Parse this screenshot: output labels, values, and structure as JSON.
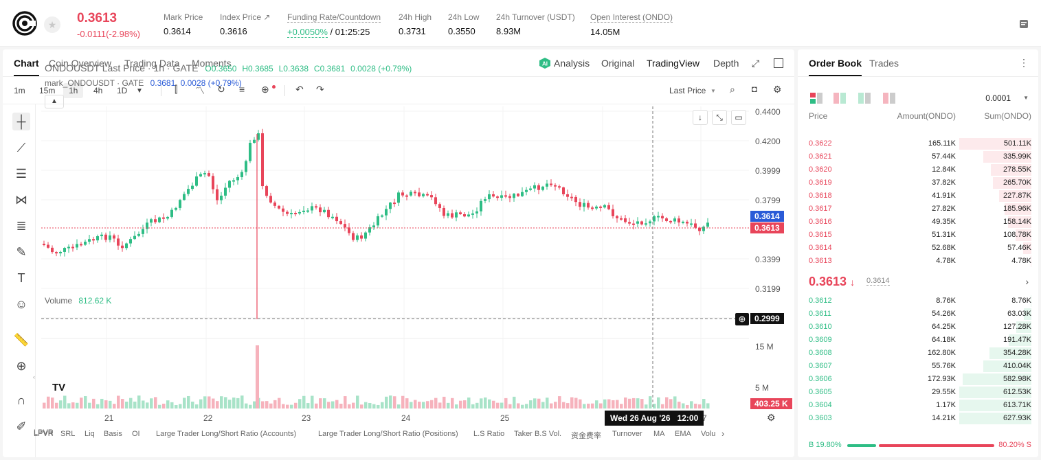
{
  "header": {
    "last_price": "0.3613",
    "change": "-0.0111(-2.98%)",
    "stats": [
      {
        "label": "Mark Price",
        "value": "0.3614"
      },
      {
        "label": "Index Price ↗",
        "value": "0.3616"
      },
      {
        "label": "Funding Rate/Countdown",
        "value": "+0.0050%",
        "value2": "/ 01:25:25"
      },
      {
        "label": "24h High",
        "value": "0.3731"
      },
      {
        "label": "24h Low",
        "value": "0.3550"
      },
      {
        "label": "24h Turnover (USDT)",
        "value": "8.93M"
      },
      {
        "label": "Open Interest (ONDO)",
        "value": "14.05M"
      }
    ]
  },
  "chart_tabs": [
    "Chart",
    "Coin Overview",
    "Trading Data",
    "Moments"
  ],
  "chart_view_tabs": [
    "Analysis",
    "Original",
    "TradingView",
    "Depth"
  ],
  "intervals": [
    "1m",
    "15m",
    "1h",
    "4h",
    "1D"
  ],
  "last_price_select": "Last Price",
  "legend": {
    "main": "ONDOUSDT Last Price · 1h · GATE",
    "o": "O0.3650",
    "h": "H0.3685",
    "l": "L0.3638",
    "c": "C0.3681",
    "chg": "0.0028 (+0.79%)",
    "mark_name": "mark_ONDOUSDT · GATE",
    "mark_val": "0.3681",
    "mark_chg": "0.0028 (+0.79%)"
  },
  "y_axis": [
    "0.4400",
    "0.4200",
    "0.3999",
    "0.3799",
    "0.3399",
    "0.3199"
  ],
  "price_tags": {
    "mark": "0.3614",
    "last": "0.3613",
    "cross": "0.2999",
    "volume": "403.25 K"
  },
  "volume": {
    "label": "Volume",
    "value": "812.62 K",
    "axis": [
      "15 M",
      "5 M"
    ]
  },
  "x_axis": [
    "21",
    "22",
    "23",
    "24",
    "25",
    "7"
  ],
  "crosshair_time": "Wed 26 Aug '26",
  "crosshair_hour": "12:00",
  "bottom_indicators": [
    "LPVR",
    "SRL",
    "Liq",
    "Basis",
    "OI",
    "Large Trader Long/Short Ratio (Accounts)",
    "Large Trader Long/Short Ratio (Positions)",
    "L.S Ratio",
    "Taker B.S Vol.",
    "资金费率",
    "Turnover",
    "MA",
    "EMA",
    "Volu"
  ],
  "orderbook": {
    "tabs": [
      "Order Book",
      "Trades"
    ],
    "precision": "0.0001",
    "headers": [
      "Price",
      "Amount(ONDO)",
      "Sum(ONDO)"
    ],
    "asks": [
      {
        "price": "0.3622",
        "amount": "165.11K",
        "sum": "501.11K",
        "depth": 1.0
      },
      {
        "price": "0.3621",
        "amount": "57.44K",
        "sum": "335.99K",
        "depth": 0.67
      },
      {
        "price": "0.3620",
        "amount": "12.84K",
        "sum": "278.55K",
        "depth": 0.56
      },
      {
        "price": "0.3619",
        "amount": "37.82K",
        "sum": "265.70K",
        "depth": 0.53
      },
      {
        "price": "0.3618",
        "amount": "41.91K",
        "sum": "227.87K",
        "depth": 0.45
      },
      {
        "price": "0.3617",
        "amount": "27.82K",
        "sum": "185.96K",
        "depth": 0.37
      },
      {
        "price": "0.3616",
        "amount": "49.35K",
        "sum": "158.14K",
        "depth": 0.32
      },
      {
        "price": "0.3615",
        "amount": "51.31K",
        "sum": "108.78K",
        "depth": 0.22
      },
      {
        "price": "0.3614",
        "amount": "52.68K",
        "sum": "57.46K",
        "depth": 0.11
      },
      {
        "price": "0.3613",
        "amount": "4.78K",
        "sum": "4.78K",
        "depth": 0.01
      }
    ],
    "mid_price": "0.3613",
    "mid_mark": "0.3614",
    "bids": [
      {
        "price": "0.3612",
        "amount": "8.76K",
        "sum": "8.76K",
        "depth": 0.01
      },
      {
        "price": "0.3611",
        "amount": "54.26K",
        "sum": "63.03K",
        "depth": 0.1
      },
      {
        "price": "0.3610",
        "amount": "64.25K",
        "sum": "127.28K",
        "depth": 0.21
      },
      {
        "price": "0.3609",
        "amount": "64.18K",
        "sum": "191.47K",
        "depth": 0.31
      },
      {
        "price": "0.3608",
        "amount": "162.80K",
        "sum": "354.28K",
        "depth": 0.58
      },
      {
        "price": "0.3607",
        "amount": "55.76K",
        "sum": "410.04K",
        "depth": 0.67
      },
      {
        "price": "0.3606",
        "amount": "172.93K",
        "sum": "582.98K",
        "depth": 0.95
      },
      {
        "price": "0.3605",
        "amount": "29.55K",
        "sum": "612.53K",
        "depth": 1.0
      },
      {
        "price": "0.3604",
        "amount": "1.17K",
        "sum": "613.71K",
        "depth": 1.0
      },
      {
        "price": "0.3603",
        "amount": "14.21K",
        "sum": "627.93K",
        "depth": 1.0
      }
    ],
    "buy_ratio": "B 19.80%",
    "sell_ratio": "80.20% S",
    "buy_fraction": 0.198
  }
}
